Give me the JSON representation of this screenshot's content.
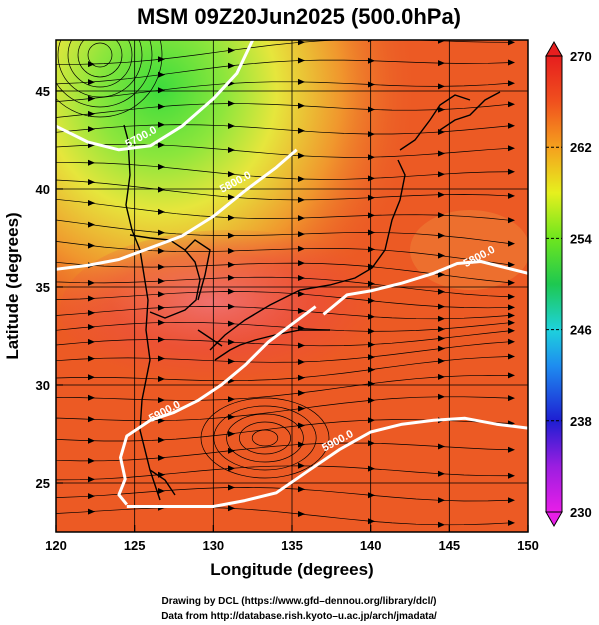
{
  "title": "MSM 09Z20Jun2025 (500.0hPa)",
  "chart_data": {
    "type": "heatmap",
    "title": "MSM 09Z20Jun2025 (500.0hPa)",
    "xlabel": "Longitude (degrees)",
    "ylabel": "Latitude  (degrees)",
    "xlim": [
      120,
      150
    ],
    "ylim": [
      22.5,
      47.6
    ],
    "x_ticks": [
      "120",
      "125",
      "130",
      "135",
      "140",
      "145",
      "150"
    ],
    "x_tick_values": [
      120,
      125,
      130,
      135,
      140,
      145,
      150
    ],
    "y_ticks": [
      "25",
      "30",
      "35",
      "40",
      "45"
    ],
    "y_tick_values": [
      25,
      30,
      35,
      40,
      45
    ],
    "grid": true,
    "colorbar": {
      "min": 230,
      "max": 270,
      "tick_values": [
        230,
        238,
        246,
        254,
        262,
        270
      ],
      "tick_labels": [
        "230",
        "238",
        "246",
        "254",
        "262",
        "270"
      ],
      "placement": "right"
    },
    "contours": [
      {
        "label": "5700.0",
        "label_lon": 125.5,
        "label_lat": 42.5,
        "path": [
          [
            120,
            43.2
          ],
          [
            122,
            42.4
          ],
          [
            124,
            42.0
          ],
          [
            126,
            42.2
          ],
          [
            128,
            43.2
          ],
          [
            130,
            44.6
          ],
          [
            131.5,
            45.9
          ],
          [
            132.5,
            47.6
          ]
        ]
      },
      {
        "label": "5800.0",
        "label_lon": 131.5,
        "label_lat": 40.2,
        "path": [
          [
            120,
            35.9
          ],
          [
            122,
            36.1
          ],
          [
            124,
            36.4
          ],
          [
            126,
            37.0
          ],
          [
            128,
            37.6
          ],
          [
            130,
            38.6
          ],
          [
            132,
            39.9
          ],
          [
            134,
            41.1
          ],
          [
            135.3,
            42.0
          ]
        ]
      },
      {
        "label": "5800.0",
        "label_lon": 147.0,
        "label_lat": 36.4,
        "path": [
          [
            137,
            33.6
          ],
          [
            138.5,
            34.6
          ],
          [
            140,
            34.8
          ],
          [
            142,
            35.2
          ],
          [
            144,
            35.7
          ],
          [
            145.5,
            36.2
          ],
          [
            147,
            36.3
          ],
          [
            148.5,
            36.0
          ],
          [
            150,
            35.7
          ]
        ]
      },
      {
        "label": "5900.0",
        "label_lon": 127.0,
        "label_lat": 28.5,
        "path": [
          [
            136.5,
            34.0
          ],
          [
            135,
            33.1
          ],
          [
            133.5,
            32.2
          ],
          [
            132,
            31.0
          ],
          [
            130.5,
            30.0
          ],
          [
            129,
            29.2
          ],
          [
            127.5,
            28.6
          ],
          [
            126,
            28.2
          ],
          [
            124.5,
            27.4
          ],
          [
            124.1,
            26.3
          ],
          [
            124.4,
            25.2
          ],
          [
            124.0,
            24.4
          ],
          [
            124.5,
            23.9
          ]
        ]
      },
      {
        "label": "5900.0",
        "label_lon": 138.0,
        "label_lat": 27.0,
        "path": [
          [
            124.5,
            23.8
          ],
          [
            127,
            23.8
          ],
          [
            130,
            23.8
          ],
          [
            132,
            24.1
          ],
          [
            134,
            24.5
          ],
          [
            136,
            25.6
          ],
          [
            138,
            26.7
          ],
          [
            140,
            27.6
          ],
          [
            142,
            28.0
          ],
          [
            144,
            28.2
          ],
          [
            146,
            28.3
          ],
          [
            148,
            28.0
          ],
          [
            150,
            27.8
          ]
        ]
      }
    ]
  },
  "credits": {
    "line1": "Drawing by DCL (https://www.gfd–dennou.org/library/dcl/)",
    "line2": "Data from http://database.rish.kyoto–u.ac.jp/arch/jmadata/"
  }
}
